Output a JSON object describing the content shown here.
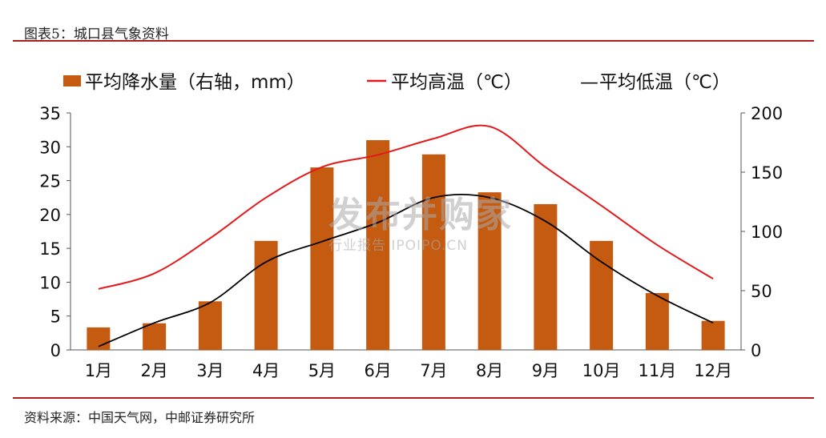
{
  "figure": {
    "title": "图表5：城口县气象资料",
    "source": "资料来源：中国天气网，中邮证券研究所"
  },
  "watermark": {
    "main": "发布并购家",
    "sub": "行业报告 IPOIPO.CN"
  },
  "chart_data": {
    "type": "bar",
    "categories": [
      "1月",
      "2月",
      "3月",
      "4月",
      "5月",
      "6月",
      "7月",
      "8月",
      "9月",
      "10月",
      "11月",
      "12月"
    ],
    "series": [
      {
        "name": "平均降水量（右轴，mm）",
        "kind": "bar",
        "axis": "right",
        "color": "#c55a11",
        "values": [
          19,
          22.5,
          41,
          92,
          154,
          177,
          165,
          133,
          123,
          92,
          48,
          24.5
        ]
      },
      {
        "name": "平均高温（℃）",
        "kind": "line",
        "axis": "left",
        "color": "#e31a1c",
        "values": [
          9,
          11.3,
          16.5,
          22.5,
          27,
          28.8,
          31.2,
          33,
          27,
          21.3,
          15.5,
          10.5
        ]
      },
      {
        "name": "平均低温（℃）",
        "kind": "line",
        "axis": "left",
        "color": "#000000",
        "values": [
          0.5,
          4,
          7,
          13,
          16,
          18.8,
          22.5,
          22.5,
          19,
          13,
          8,
          4
        ]
      }
    ],
    "legend_prefix": {
      "high": "—",
      "low": "—"
    },
    "yleft": {
      "min": 0,
      "max": 35,
      "ticks": [
        0,
        5,
        10,
        15,
        20,
        25,
        30,
        35
      ]
    },
    "yright": {
      "min": 0,
      "max": 200,
      "ticks": [
        0,
        50,
        100,
        150,
        200
      ]
    },
    "legend_position": "top",
    "grid": false
  }
}
